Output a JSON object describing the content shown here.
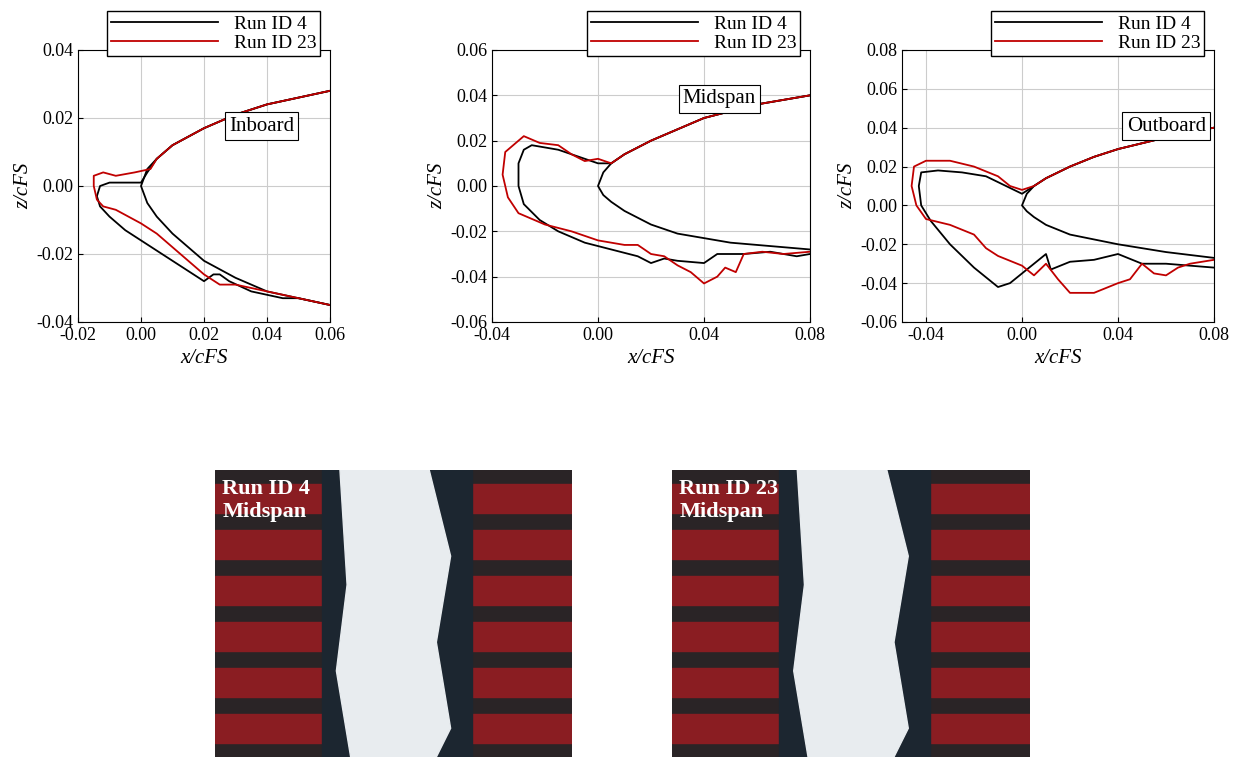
{
  "chart_data": [
    {
      "type": "line",
      "annotation": "Inboard",
      "xlabel": "x/cFS",
      "ylabel": "z/cFS",
      "xlim": [
        -0.02,
        0.06
      ],
      "ylim": [
        -0.04,
        0.04
      ],
      "xticks": [
        -0.02,
        {
          "value": 0,
          "label": "0.00"
        },
        0.02,
        0.04,
        0.06
      ],
      "yticks": [
        -0.04,
        -0.02,
        {
          "value": 0,
          "label": "0.00"
        },
        0.02,
        0.04
      ],
      "grid": true,
      "legend": "upper right",
      "series": [
        {
          "color": "#000000",
          "x": [
            0.06,
            0.05,
            0.04,
            0.03,
            0.02,
            0.01,
            0.005,
            0.002,
            0,
            0.002,
            0.005,
            0.01,
            0.02,
            0.03,
            0.04,
            0.05,
            0.06
          ],
          "values": [
            0.028,
            0.026,
            0.024,
            0.021,
            0.017,
            0.012,
            0.008,
            0.005,
            0,
            -0.005,
            -0.009,
            -0.014,
            -0.022,
            -0.027,
            -0.031,
            -0.033,
            -0.035
          ]
        },
        {
          "name": "Run ID 4",
          "color": "#000000",
          "x": [
            0.06,
            0.05,
            0.04,
            0.03,
            0.02,
            0.01,
            0.005,
            0.002,
            0.0,
            -0.005,
            -0.01,
            -0.013,
            -0.014,
            -0.013,
            -0.01,
            -0.005,
            0,
            0.005,
            0.01,
            0.015,
            0.02,
            0.023,
            0.025,
            0.028,
            0.035,
            0.04,
            0.045,
            0.05,
            0.06
          ],
          "values": [
            0.028,
            0.026,
            0.024,
            0.021,
            0.017,
            0.012,
            0.008,
            0.004,
            0.001,
            0.001,
            0.001,
            0.0,
            -0.003,
            -0.006,
            -0.009,
            -0.013,
            -0.016,
            -0.019,
            -0.022,
            -0.025,
            -0.028,
            -0.026,
            -0.026,
            -0.028,
            -0.031,
            -0.032,
            -0.033,
            -0.033,
            -0.035
          ]
        },
        {
          "name": "Run ID 23",
          "color": "#c00000",
          "x": [
            0.06,
            0.05,
            0.04,
            0.03,
            0.02,
            0.01,
            0.005,
            0.003,
            -0.002,
            -0.008,
            -0.012,
            -0.015,
            -0.015,
            -0.014,
            -0.012,
            -0.008,
            -0.004,
            0,
            0.005,
            0.01,
            0.015,
            0.02,
            0.025,
            0.03,
            0.035,
            0.04,
            0.05,
            0.06
          ],
          "values": [
            0.028,
            0.026,
            0.024,
            0.021,
            0.017,
            0.012,
            0.008,
            0.005,
            0.004,
            0.003,
            0.004,
            0.003,
            0.0,
            -0.004,
            -0.006,
            -0.007,
            -0.009,
            -0.011,
            -0.014,
            -0.018,
            -0.022,
            -0.026,
            -0.029,
            -0.029,
            -0.03,
            -0.031,
            -0.033,
            -0.035
          ]
        }
      ]
    },
    {
      "type": "line",
      "annotation": "Midspan",
      "xlabel": "x/cFS",
      "ylabel": "z/cFS",
      "xlim": [
        -0.04,
        0.08
      ],
      "ylim": [
        -0.06,
        0.06
      ],
      "xticks": [
        -0.04,
        {
          "value": 0,
          "label": "0.00"
        },
        0.04,
        0.08
      ],
      "yticks": [
        -0.06,
        -0.04,
        -0.02,
        {
          "value": 0,
          "label": "0.00"
        },
        0.02,
        0.04,
        0.06
      ],
      "grid": true,
      "legend": "upper right",
      "series": [
        {
          "color": "#000000",
          "x": [
            0.08,
            0.07,
            0.06,
            0.05,
            0.04,
            0.03,
            0.02,
            0.01,
            0.005,
            0.002,
            0,
            0.002,
            0.005,
            0.01,
            0.02,
            0.03,
            0.04,
            0.05,
            0.06,
            0.07,
            0.08
          ],
          "values": [
            0.04,
            0.038,
            0.036,
            0.033,
            0.03,
            0.025,
            0.02,
            0.014,
            0.01,
            0.006,
            0,
            -0.004,
            -0.007,
            -0.011,
            -0.017,
            -0.021,
            -0.023,
            -0.025,
            -0.026,
            -0.027,
            -0.028
          ]
        },
        {
          "name": "Run ID 4",
          "color": "#000000",
          "x": [
            0.08,
            0.07,
            0.06,
            0.05,
            0.04,
            0.03,
            0.02,
            0.01,
            0.005,
            0.0,
            -0.005,
            -0.015,
            -0.025,
            -0.028,
            -0.03,
            -0.03,
            -0.028,
            -0.022,
            -0.015,
            -0.005,
            0.005,
            0.015,
            0.02,
            0.025,
            0.03,
            0.04,
            0.045,
            0.055,
            0.065,
            0.075,
            0.08
          ],
          "values": [
            0.04,
            0.038,
            0.036,
            0.033,
            0.03,
            0.025,
            0.02,
            0.014,
            0.01,
            0.01,
            0.012,
            0.016,
            0.018,
            0.016,
            0.01,
            0.0,
            -0.008,
            -0.015,
            -0.02,
            -0.025,
            -0.028,
            -0.031,
            -0.034,
            -0.032,
            -0.033,
            -0.034,
            -0.03,
            -0.03,
            -0.029,
            -0.031,
            -0.03
          ]
        },
        {
          "name": "Run ID 23",
          "color": "#c00000",
          "x": [
            0.08,
            0.07,
            0.06,
            0.05,
            0.04,
            0.03,
            0.02,
            0.01,
            0.005,
            0.0,
            -0.005,
            -0.01,
            -0.015,
            -0.022,
            -0.028,
            -0.032,
            -0.035,
            -0.036,
            -0.034,
            -0.03,
            -0.02,
            -0.01,
            0.0,
            0.01,
            0.015,
            0.02,
            0.025,
            0.03,
            0.035,
            0.04,
            0.045,
            0.048,
            0.052,
            0.055,
            0.062,
            0.07,
            0.08
          ],
          "values": [
            0.04,
            0.038,
            0.036,
            0.033,
            0.03,
            0.025,
            0.02,
            0.014,
            0.01,
            0.012,
            0.011,
            0.014,
            0.018,
            0.019,
            0.022,
            0.018,
            0.015,
            0.005,
            -0.005,
            -0.012,
            -0.017,
            -0.02,
            -0.024,
            -0.026,
            -0.026,
            -0.03,
            -0.031,
            -0.035,
            -0.038,
            -0.043,
            -0.04,
            -0.036,
            -0.038,
            -0.03,
            -0.029,
            -0.03,
            -0.029
          ]
        }
      ]
    },
    {
      "type": "line",
      "annotation": "Outboard",
      "xlabel": "x/cFS",
      "ylabel": "z/cFS",
      "xlim": [
        -0.05,
        0.08
      ],
      "ylim": [
        -0.06,
        0.08
      ],
      "xticks": [
        -0.04,
        {
          "value": 0,
          "label": "0.00"
        },
        0.04,
        0.08
      ],
      "yticks": [
        -0.06,
        -0.04,
        -0.02,
        {
          "value": 0,
          "label": "0.00"
        },
        0.02,
        0.04,
        0.06,
        0.08
      ],
      "grid": true,
      "legend": "upper right",
      "series": [
        {
          "color": "#000000",
          "x": [
            0.08,
            0.07,
            0.06,
            0.05,
            0.04,
            0.03,
            0.02,
            0.01,
            0.005,
            0.002,
            0,
            0.002,
            0.005,
            0.01,
            0.02,
            0.04,
            0.06,
            0.08
          ],
          "values": [
            0.04,
            0.038,
            0.035,
            0.032,
            0.029,
            0.025,
            0.02,
            0.014,
            0.01,
            0.006,
            0,
            -0.003,
            -0.006,
            -0.01,
            -0.015,
            -0.02,
            -0.024,
            -0.027
          ]
        },
        {
          "name": "Run ID 4",
          "color": "#000000",
          "x": [
            0.08,
            0.07,
            0.06,
            0.05,
            0.04,
            0.03,
            0.02,
            0.01,
            0.005,
            0.0,
            -0.005,
            -0.015,
            -0.025,
            -0.035,
            -0.042,
            -0.043,
            -0.042,
            -0.038,
            -0.03,
            -0.02,
            -0.01,
            -0.005,
            0.0,
            0.005,
            0.01,
            0.012,
            0.02,
            0.03,
            0.04,
            0.05,
            0.06,
            0.07,
            0.08
          ],
          "values": [
            0.04,
            0.038,
            0.035,
            0.032,
            0.029,
            0.025,
            0.02,
            0.014,
            0.01,
            0.006,
            0.009,
            0.015,
            0.017,
            0.018,
            0.017,
            0.01,
            0.0,
            -0.008,
            -0.02,
            -0.032,
            -0.042,
            -0.04,
            -0.035,
            -0.03,
            -0.025,
            -0.033,
            -0.029,
            -0.028,
            -0.025,
            -0.03,
            -0.03,
            -0.031,
            -0.032
          ]
        },
        {
          "name": "Run ID 23",
          "color": "#c00000",
          "x": [
            0.08,
            0.07,
            0.06,
            0.05,
            0.04,
            0.03,
            0.02,
            0.01,
            0.005,
            0.0,
            -0.005,
            -0.01,
            -0.02,
            -0.03,
            -0.04,
            -0.045,
            -0.046,
            -0.044,
            -0.04,
            -0.03,
            -0.02,
            -0.015,
            -0.01,
            0.0,
            0.005,
            0.01,
            0.015,
            0.02,
            0.03,
            0.04,
            0.045,
            0.05,
            0.055,
            0.06,
            0.065,
            0.07,
            0.08
          ],
          "values": [
            0.04,
            0.038,
            0.035,
            0.032,
            0.029,
            0.025,
            0.02,
            0.014,
            0.01,
            0.008,
            0.01,
            0.015,
            0.02,
            0.023,
            0.023,
            0.02,
            0.01,
            0.0,
            -0.007,
            -0.01,
            -0.015,
            -0.022,
            -0.026,
            -0.031,
            -0.036,
            -0.03,
            -0.038,
            -0.045,
            -0.045,
            -0.04,
            -0.038,
            -0.03,
            -0.035,
            -0.036,
            -0.032,
            -0.03,
            -0.028
          ]
        }
      ]
    }
  ],
  "photos": [
    {
      "title": [
        "Run ID 4",
        "Midspan"
      ]
    },
    {
      "title": [
        "Run ID 23",
        "Midspan"
      ]
    }
  ]
}
